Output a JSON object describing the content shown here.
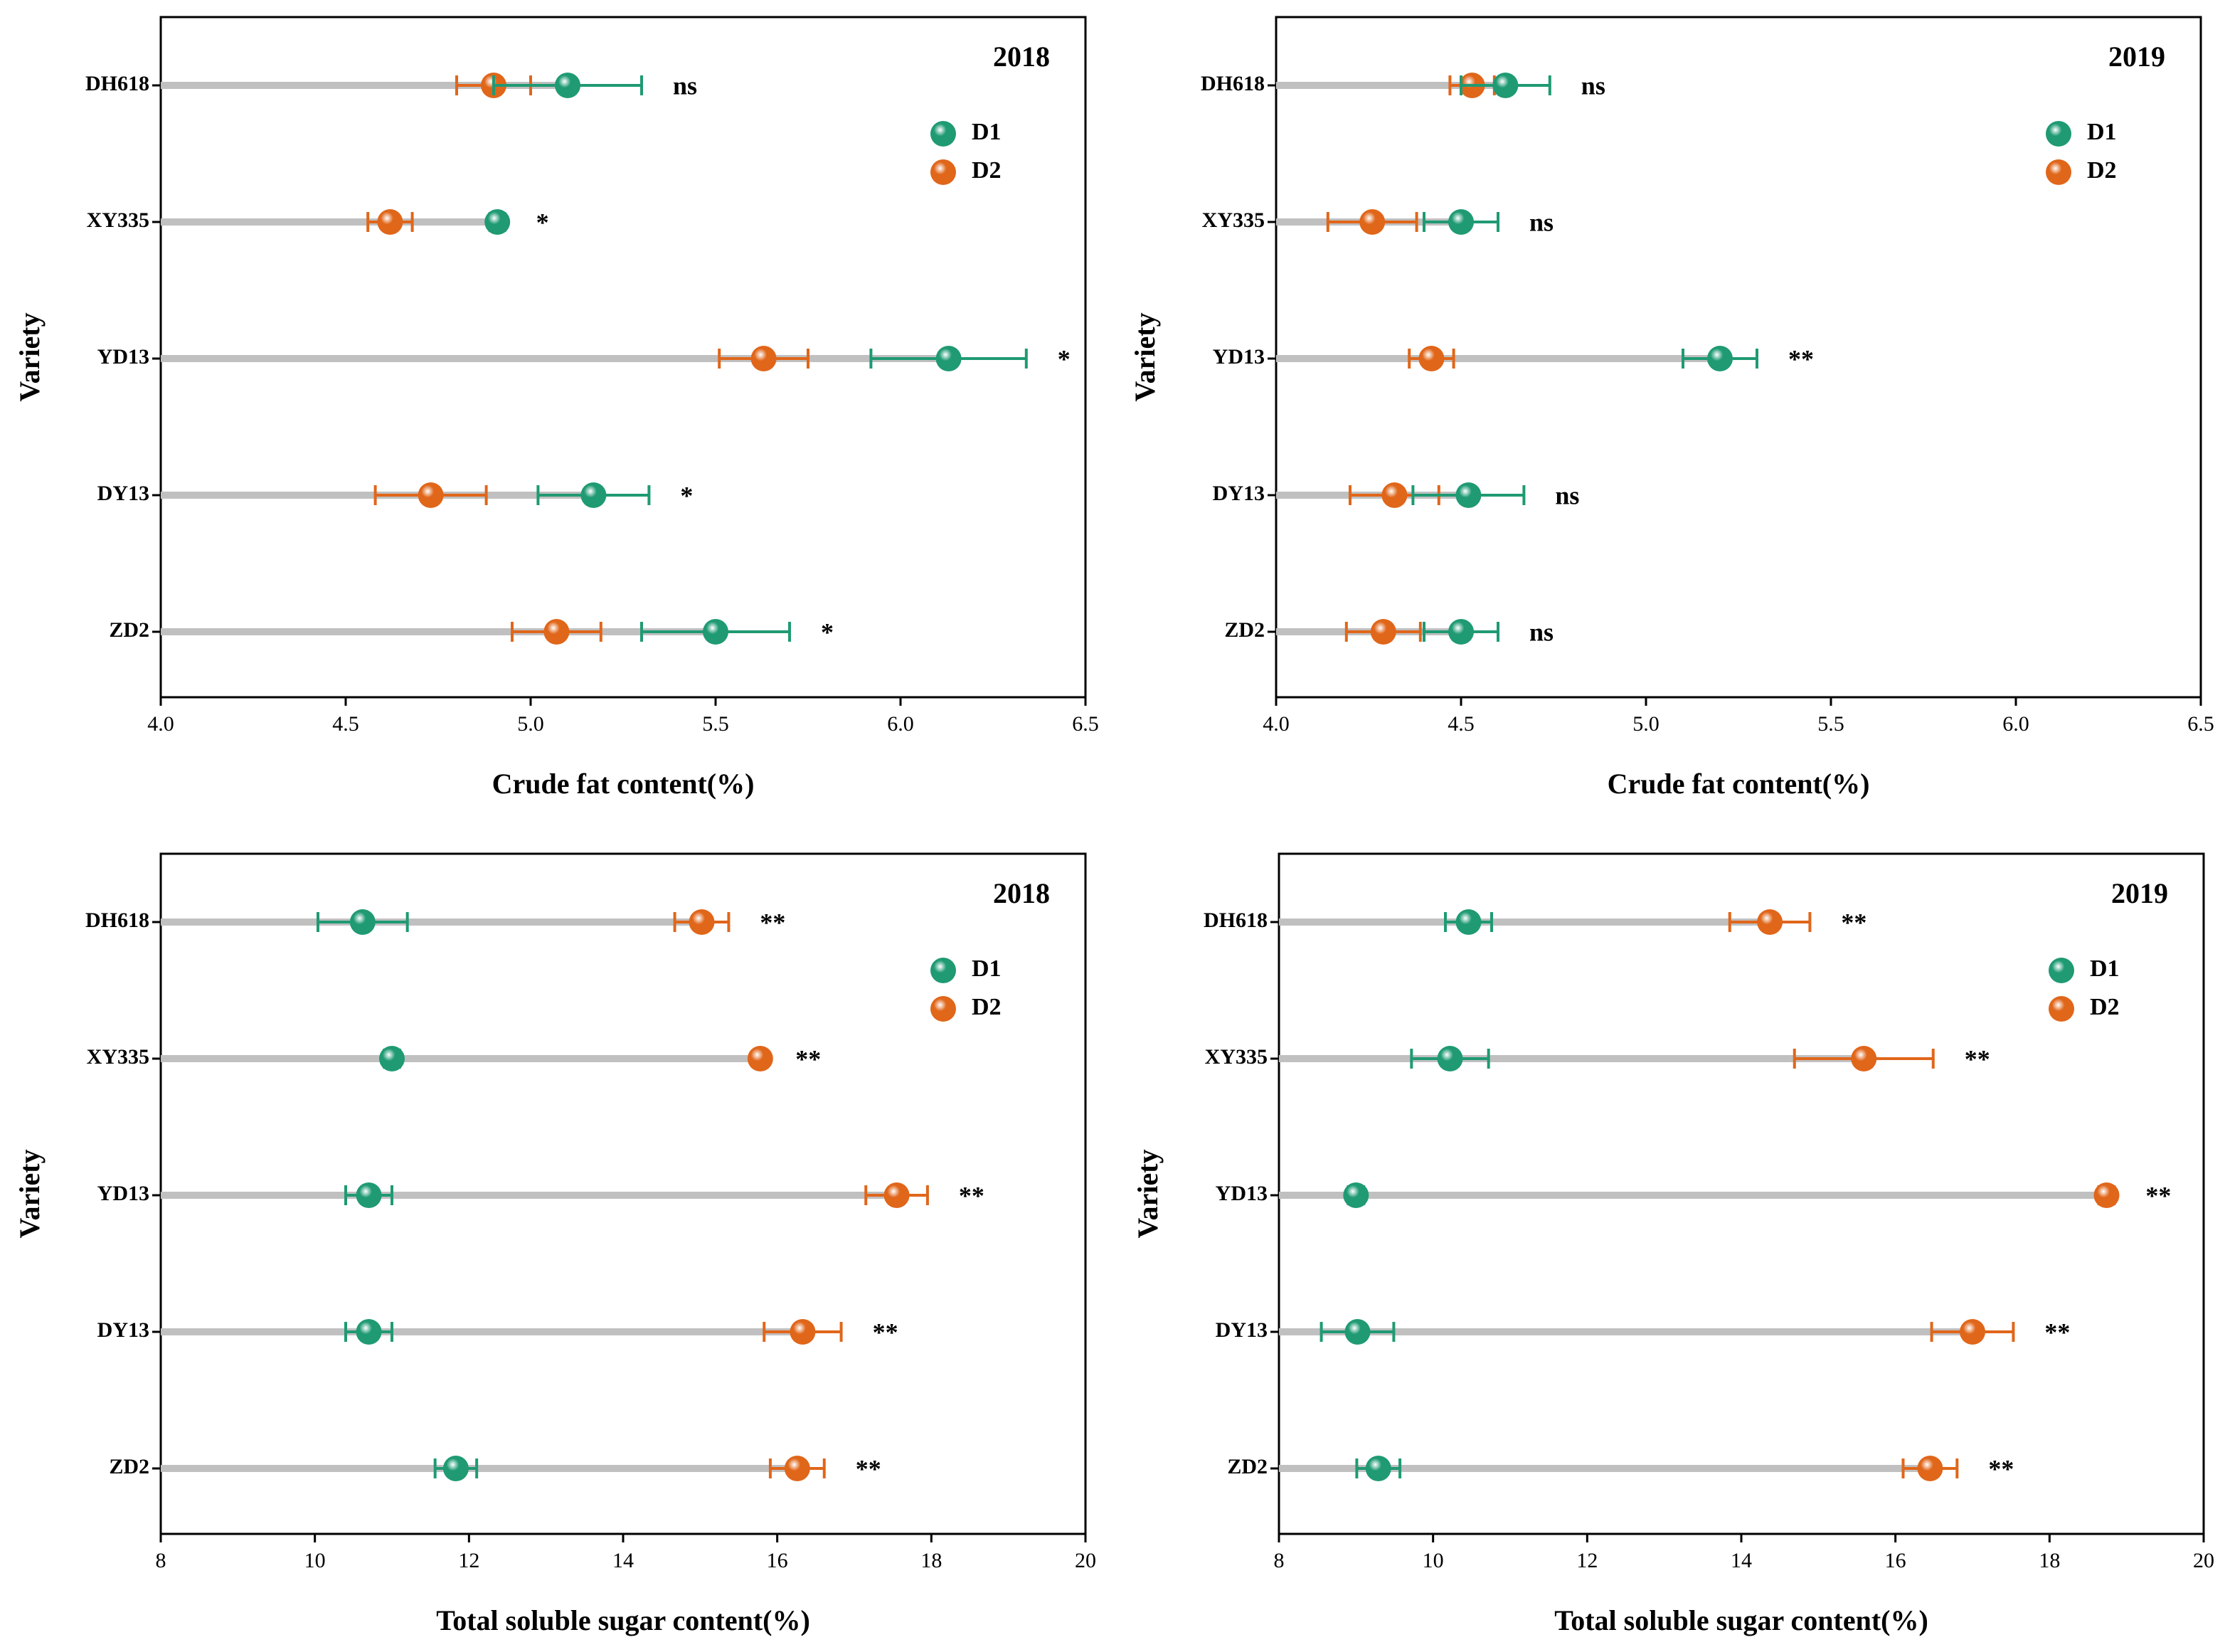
{
  "chart_data": [
    {
      "type": "dot",
      "title": "2018",
      "xlabel": "Crude fat content(%)",
      "ylabel": "Variety",
      "categories": [
        "DH618",
        "XY335",
        "YD13",
        "DY13",
        "ZD2"
      ],
      "series": [
        {
          "name": "D1",
          "color": "#1f9a73",
          "values": [
            5.1,
            4.91,
            6.13,
            5.17,
            5.5
          ],
          "errors": [
            0.2,
            0.02,
            0.21,
            0.15,
            0.2
          ]
        },
        {
          "name": "D2",
          "color": "#e0661a",
          "values": [
            4.9,
            4.62,
            5.63,
            4.73,
            5.07
          ],
          "errors": [
            0.1,
            0.06,
            0.12,
            0.15,
            0.12
          ]
        }
      ],
      "annotations": [
        "ns",
        "*",
        "*",
        "*",
        "*"
      ],
      "xlim": [
        4.0,
        6.5
      ],
      "xticks": [
        {
          "value": 4,
          "label": "4.0"
        },
        4.5,
        {
          "value": 5,
          "label": "5.0"
        },
        5.5,
        {
          "value": 6,
          "label": "6.0"
        },
        6.5
      ]
    },
    {
      "type": "dot",
      "title": "2019",
      "xlabel": "Crude fat content(%)",
      "ylabel": "Variety",
      "categories": [
        "DH618",
        "XY335",
        "YD13",
        "DY13",
        "ZD2"
      ],
      "series": [
        {
          "name": "D1",
          "color": "#1f9a73",
          "values": [
            4.62,
            4.5,
            5.2,
            4.52,
            4.5
          ],
          "errors": [
            0.12,
            0.1,
            0.1,
            0.15,
            0.1
          ]
        },
        {
          "name": "D2",
          "color": "#e0661a",
          "values": [
            4.53,
            4.26,
            4.42,
            4.32,
            4.29
          ],
          "errors": [
            0.06,
            0.12,
            0.06,
            0.12,
            0.1
          ]
        }
      ],
      "annotations": [
        "ns",
        "ns",
        "**",
        "ns",
        "ns"
      ],
      "xlim": [
        4.0,
        6.5
      ],
      "xticks": [
        {
          "value": 4,
          "label": "4.0"
        },
        4.5,
        {
          "value": 5,
          "label": "5.0"
        },
        5.5,
        {
          "value": 6,
          "label": "6.0"
        },
        6.5
      ]
    },
    {
      "type": "dot",
      "title": "2018",
      "xlabel": "Total soluble sugar content(%)",
      "ylabel": "Variety",
      "categories": [
        "DH618",
        "XY335",
        "YD13",
        "DY13",
        "ZD2"
      ],
      "series": [
        {
          "name": "D1",
          "color": "#1f9a73",
          "values": [
            10.62,
            11.0,
            10.7,
            10.7,
            11.83
          ],
          "errors": [
            0.58,
            0.1,
            0.3,
            0.3,
            0.27
          ]
        },
        {
          "name": "D2",
          "color": "#e0661a",
          "values": [
            15.02,
            15.78,
            17.55,
            16.33,
            16.26
          ],
          "errors": [
            0.35,
            0.05,
            0.4,
            0.5,
            0.35
          ]
        }
      ],
      "annotations": [
        "**",
        "**",
        "**",
        "**",
        "**"
      ],
      "xlim": [
        8,
        20
      ],
      "xticks": [
        8,
        10,
        12,
        14,
        16,
        18,
        20
      ]
    },
    {
      "type": "dot",
      "title": "2019",
      "xlabel": "Total soluble sugar content(%)",
      "ylabel": "Variety",
      "categories": [
        "DH618",
        "XY335",
        "YD13",
        "DY13",
        "ZD2"
      ],
      "series": [
        {
          "name": "D1",
          "color": "#1f9a73",
          "values": [
            10.46,
            10.22,
            9.0,
            9.02,
            9.29
          ],
          "errors": [
            0.3,
            0.5,
            0.1,
            0.47,
            0.28
          ]
        },
        {
          "name": "D2",
          "color": "#e0661a",
          "values": [
            14.37,
            15.59,
            18.74,
            17.0,
            16.45
          ],
          "errors": [
            0.52,
            0.9,
            0.1,
            0.53,
            0.35
          ]
        }
      ],
      "annotations": [
        "**",
        "**",
        "**",
        "**",
        "**"
      ],
      "xlim": [
        8,
        20
      ],
      "xticks": [
        8,
        10,
        12,
        14,
        16,
        18,
        20
      ]
    }
  ]
}
